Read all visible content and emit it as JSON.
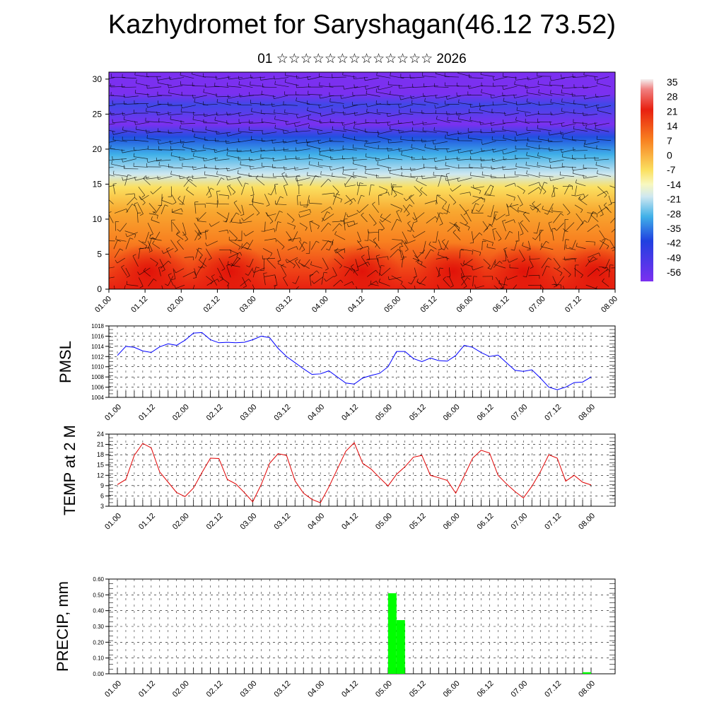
{
  "header": {
    "title": "Kazhydromet for Saryshagan(46.12 73.52)",
    "subtitle": "01 ☆☆☆☆☆☆☆☆☆☆☆☆☆ 2026"
  },
  "chart_data": [
    {
      "type": "heatmap",
      "name": "cross-section",
      "ylim": [
        0,
        31
      ],
      "yticks": [
        0,
        5,
        10,
        15,
        20,
        25,
        30
      ],
      "xticks": [
        "01.00",
        "01.12",
        "02.00",
        "02.12",
        "03.00",
        "03.12",
        "04.00",
        "04.12",
        "05.00",
        "05.12",
        "06.00",
        "06.12",
        "07.00",
        "07.12",
        "08.00"
      ],
      "colorbar_labels": [
        "35",
        "28",
        "21",
        "14",
        "7",
        "0",
        "-7",
        "-14",
        "-21",
        "-28",
        "-35",
        "-42",
        "-49",
        "-56"
      ],
      "overlay": "wind barbs",
      "colors": {
        "hot": "#e82010",
        "warm": "#f89020",
        "mild": "#fbe060",
        "cool": "#40b0e8",
        "cold": "#2040e0",
        "top": "#7b30f0"
      }
    },
    {
      "type": "line",
      "name": "PMSL",
      "ylabel": "PMSL",
      "ylim": [
        1004,
        1018
      ],
      "yticks": [
        1004,
        1006,
        1008,
        1010,
        1012,
        1014,
        1016,
        1018
      ],
      "xticks": [
        "01.00",
        "01.12",
        "02.00",
        "02.12",
        "03.00",
        "03.12",
        "04.00",
        "04.12",
        "05.00",
        "05.12",
        "06.00",
        "06.12",
        "07.00",
        "07.12",
        "08.00"
      ],
      "color": "#0000ff",
      "values": [
        1012.2,
        1014.0,
        1013.8,
        1013.1,
        1012.8,
        1013.9,
        1014.5,
        1014.2,
        1015.2,
        1016.6,
        1016.7,
        1015.3,
        1014.7,
        1014.8,
        1014.7,
        1014.8,
        1015.3,
        1016.0,
        1015.7,
        1013.6,
        1012.0,
        1010.8,
        1009.6,
        1008.5,
        1008.6,
        1009.2,
        1008.0,
        1006.8,
        1006.6,
        1007.8,
        1008.3,
        1008.7,
        1010.0,
        1013.0,
        1013.0,
        1011.6,
        1011.0,
        1011.7,
        1011.2,
        1011.1,
        1012.2,
        1014.2,
        1013.8,
        1012.8,
        1012.0,
        1012.3,
        1010.8,
        1009.3,
        1009.1,
        1009.4,
        1007.8,
        1006.0,
        1005.5,
        1006.0,
        1006.9,
        1007.0,
        1008.0
      ]
    },
    {
      "type": "line",
      "name": "TEMP at 2 M",
      "ylabel": "TEMP at 2 M",
      "ylim": [
        3,
        24
      ],
      "yticks": [
        3,
        6,
        9,
        12,
        15,
        18,
        21,
        24
      ],
      "xticks": [
        "01.00",
        "01.12",
        "02.00",
        "02.12",
        "03.00",
        "03.12",
        "04.00",
        "04.12",
        "05.00",
        "05.12",
        "06.00",
        "06.12",
        "07.00",
        "07.12",
        "08.00"
      ],
      "color": "#e00000",
      "values": [
        9.3,
        10.8,
        17.8,
        21.3,
        20.0,
        13.0,
        10.0,
        7.0,
        5.8,
        8.3,
        12.8,
        17.0,
        16.9,
        10.8,
        9.5,
        7.0,
        4.3,
        9.3,
        15.5,
        18.3,
        17.8,
        10.4,
        6.8,
        5.0,
        4.0,
        8.6,
        13.8,
        19.0,
        21.5,
        15.5,
        13.8,
        11.3,
        8.9,
        12.3,
        14.5,
        17.3,
        17.8,
        12.0,
        11.3,
        10.5,
        6.8,
        11.8,
        17.0,
        19.3,
        18.5,
        12.0,
        9.5,
        7.3,
        5.4,
        8.8,
        13.0,
        18.0,
        17.0,
        10.3,
        12.0,
        10.0,
        9.2
      ]
    },
    {
      "type": "bar",
      "name": "PRECIP, mm",
      "ylabel": "PRECIP, mm",
      "ylim": [
        0,
        0.6
      ],
      "yticks": [
        "0.00",
        "0.10",
        "0.20",
        "0.30",
        "0.40",
        "0.50",
        "0.60"
      ],
      "xticks": [
        "01.00",
        "01.12",
        "02.00",
        "02.12",
        "03.00",
        "03.12",
        "04.00",
        "04.12",
        "05.00",
        "05.12",
        "06.00",
        "06.12",
        "07.00",
        "07.12",
        "08.00"
      ],
      "color": "#00ff00",
      "bars": [
        {
          "x": 32.5,
          "value": 0.51
        },
        {
          "x": 33.5,
          "value": 0.34
        },
        {
          "x": 55.5,
          "value": 0.01
        }
      ]
    }
  ]
}
